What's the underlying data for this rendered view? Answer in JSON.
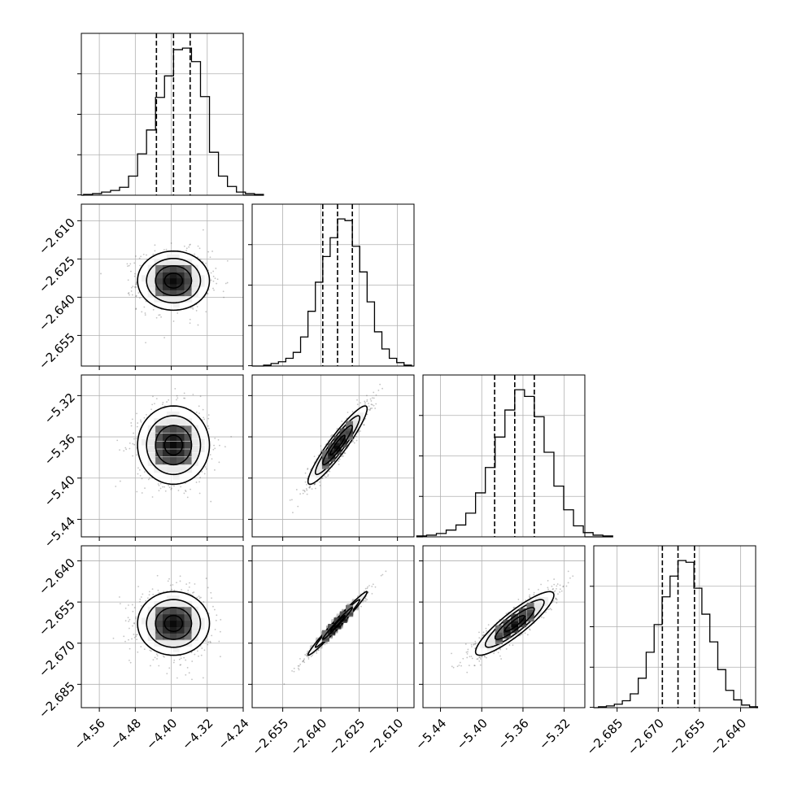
{
  "chart_data": {
    "type": "corner",
    "grid": true,
    "parameters": [
      {
        "range": [
          -4.6,
          -4.24
        ],
        "ticks": [
          -4.56,
          -4.48,
          -4.4,
          -4.32,
          -4.24
        ],
        "tick_labels": [
          "−4.56",
          "−4.48",
          "−4.40",
          "−4.32",
          "−4.24"
        ],
        "mean": -4.395,
        "sigma": 0.04,
        "quantiles": [
          -4.433,
          -4.395,
          -4.358
        ],
        "hist_counts": [
          1,
          2,
          4,
          6,
          10,
          24,
          52,
          82,
          123,
          150,
          183,
          185,
          168,
          124,
          54,
          24,
          11,
          4,
          2,
          1
        ]
      },
      {
        "range": [
          -2.667,
          -2.6035
        ],
        "ticks": [
          -2.655,
          -2.64,
          -2.625,
          -2.61
        ],
        "tick_labels": [
          "−2.655",
          "−2.640",
          "−2.625",
          "−2.610"
        ],
        "mean": -2.6335,
        "sigma": 0.0058,
        "quantiles": [
          -2.6393,
          -2.6335,
          -2.6277
        ],
        "hist_counts": [
          1,
          3,
          5,
          9,
          16,
          34,
          64,
          98,
          128,
          150,
          172,
          170,
          140,
          110,
          75,
          40,
          20,
          9,
          4,
          1
        ]
      },
      {
        "range": [
          -5.457,
          -5.3
        ],
        "ticks": [
          -5.44,
          -5.4,
          -5.36,
          -5.32
        ],
        "tick_labels": [
          "−5.44",
          "−5.40",
          "−5.36",
          "−5.32"
        ],
        "mean": -5.368,
        "sigma": 0.019,
        "quantiles": [
          -5.3875,
          -5.368,
          -5.349
        ],
        "hist_counts": [
          1,
          2,
          4,
          8,
          14,
          28,
          52,
          82,
          118,
          150,
          174,
          166,
          142,
          100,
          60,
          32,
          13,
          5,
          2,
          1
        ]
      },
      {
        "range": [
          -2.6935,
          -2.6345
        ],
        "ticks": [
          -2.685,
          -2.67,
          -2.655,
          -2.64
        ],
        "tick_labels": [
          "−2.685",
          "−2.670",
          "−2.655",
          "−2.640"
        ],
        "mean": -2.6628,
        "sigma": 0.0058,
        "quantiles": [
          -2.6685,
          -2.6628,
          -2.6568
        ],
        "hist_counts": [
          1,
          2,
          4,
          8,
          16,
          34,
          64,
          96,
          128,
          152,
          170,
          168,
          138,
          108,
          76,
          44,
          20,
          9,
          3,
          1
        ]
      }
    ],
    "correlations": {
      "1-0": 0.0,
      "2-0": 0.0,
      "2-1": 0.93,
      "3-0": 0.0,
      "3-1": 0.985,
      "3-2": 0.89
    },
    "contour_levels_sigma": [
      0.5,
      1.0,
      1.5,
      2.0
    ]
  }
}
